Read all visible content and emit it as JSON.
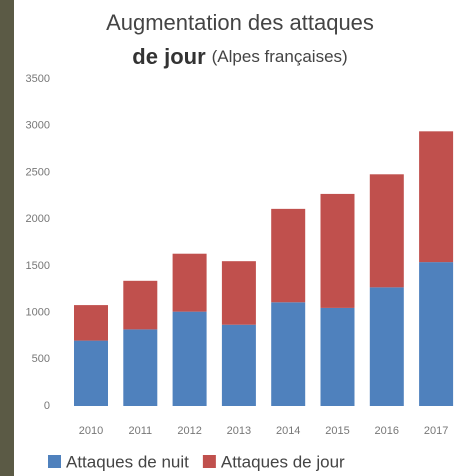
{
  "chart_data": {
    "type": "stacked-bar",
    "title": [
      "Augmentation des attaques",
      "de jour",
      "(Alpes françaises)"
    ],
    "categories": [
      "2010",
      "2011",
      "2012",
      "2013",
      "2014",
      "2015",
      "2016",
      "2017"
    ],
    "series": [
      {
        "name": "Attaques de nuit",
        "color": "#4f81bd",
        "values": [
          700,
          820,
          1010,
          870,
          1110,
          1050,
          1270,
          1540
        ]
      },
      {
        "name": "Attaques de jour",
        "color": "#c0504d",
        "values": [
          380,
          520,
          620,
          680,
          1000,
          1220,
          1210,
          1400
        ]
      }
    ],
    "ylim": [
      0,
      3500
    ],
    "yticks": [
      0,
      500,
      1000,
      1500,
      2000,
      2500,
      3000,
      3500
    ],
    "grid": false
  }
}
